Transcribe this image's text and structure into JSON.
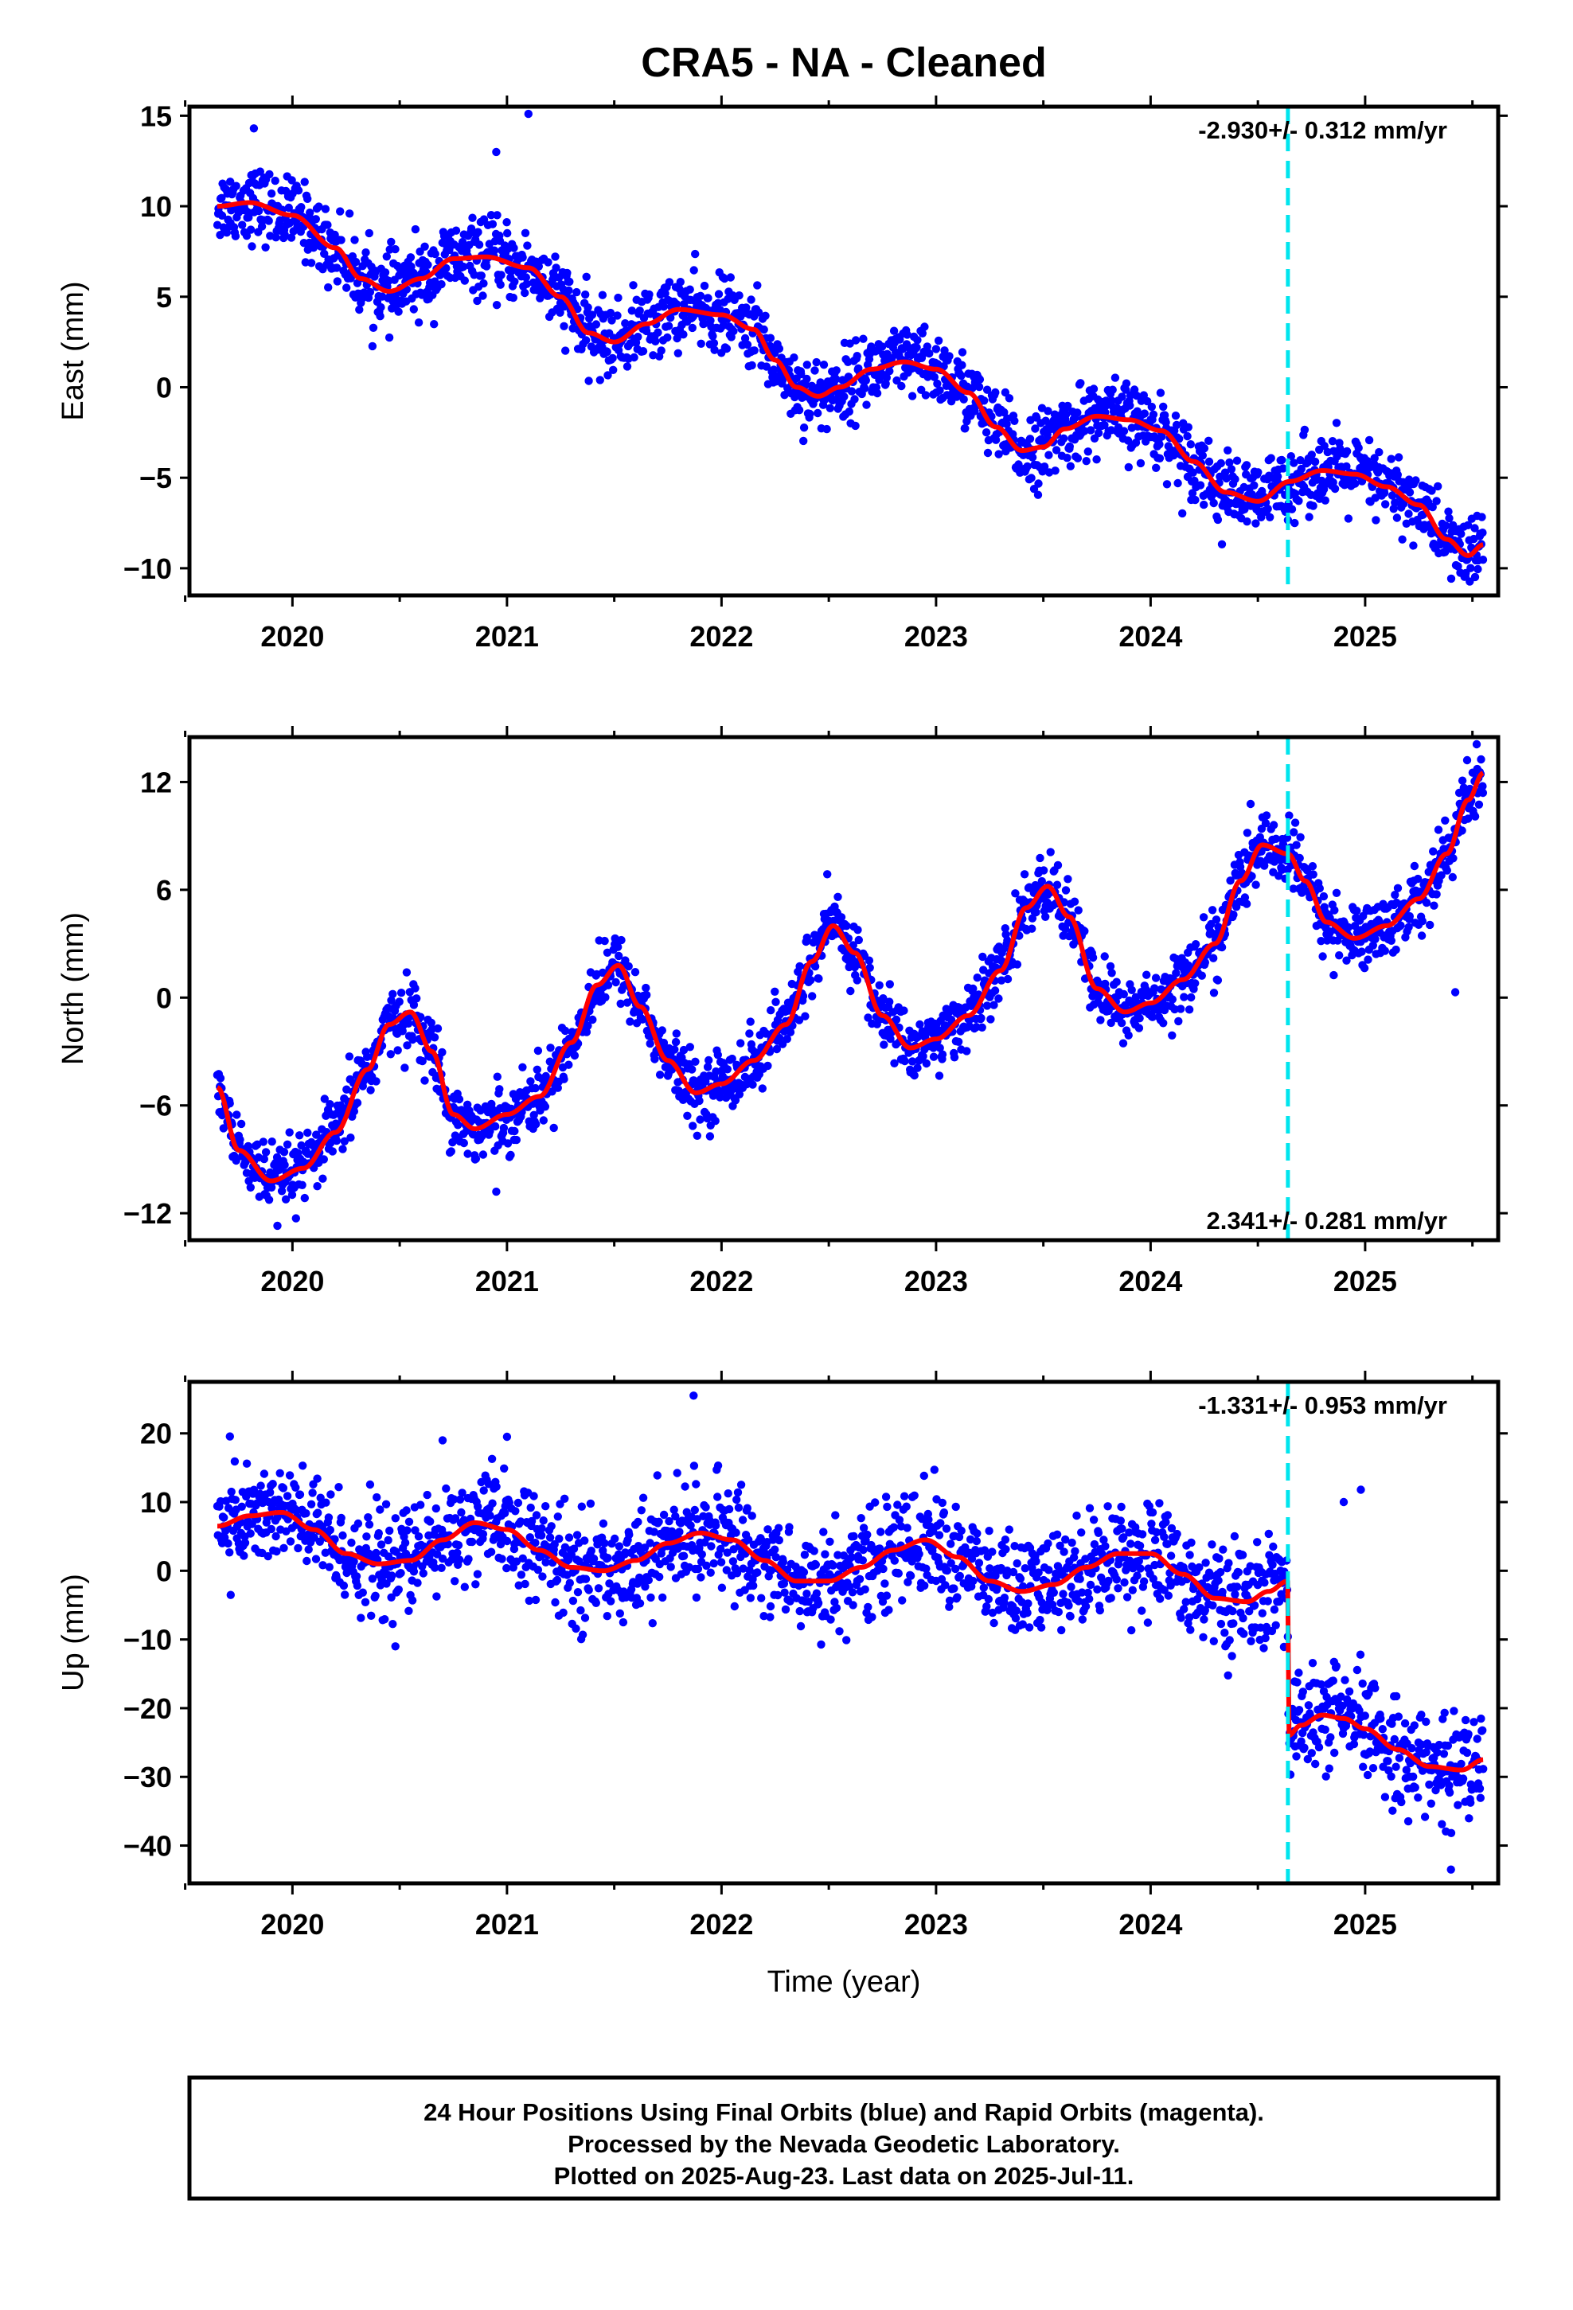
{
  "chart_data": {
    "type": "scatter",
    "title": "CRA5  - NA - Cleaned",
    "xlabel": "Time (year)",
    "xlim": [
      2019.52,
      2025.62
    ],
    "x_ticks": [
      2020,
      2021,
      2022,
      2023,
      2024,
      2025
    ],
    "x_tick_labels": [
      "2020",
      "2021",
      "2022",
      "2023",
      "2024",
      "2025"
    ],
    "equipment_change_year": 2024.64,
    "colors": {
      "points": "#0000ff",
      "fit": "#ff0000",
      "event_line": "#00e5ee"
    },
    "grid": false,
    "panels": [
      {
        "id": "east",
        "ylabel": "East (mm)",
        "ylim": [
          -11.5,
          15.5
        ],
        "yticks": [
          15,
          10,
          5,
          0,
          -5,
          -10
        ],
        "ytick_labels": [
          "15",
          "10",
          "5",
          "0",
          "−5",
          "−10"
        ],
        "rate_text": "-2.930+/- 0.312 mm/yr",
        "rate_position": "top-right",
        "fit_knots": {
          "x": [
            2019.65,
            2019.8,
            2020.0,
            2020.2,
            2020.32,
            2020.45,
            2020.6,
            2020.75,
            2020.9,
            2021.1,
            2021.25,
            2021.38,
            2021.5,
            2021.65,
            2021.8,
            2022.0,
            2022.15,
            2022.25,
            2022.35,
            2022.45,
            2022.55,
            2022.7,
            2022.85,
            2023.0,
            2023.15,
            2023.28,
            2023.4,
            2023.5,
            2023.6,
            2023.75,
            2023.9,
            2024.05,
            2024.2,
            2024.35,
            2024.5,
            2024.65,
            2024.8,
            2024.95,
            2025.1,
            2025.25,
            2025.38,
            2025.48,
            2025.55
          ],
          "y": [
            10.0,
            10.2,
            9.5,
            7.7,
            6.0,
            5.3,
            6.0,
            7.1,
            7.2,
            6.6,
            5.0,
            3.0,
            2.5,
            3.5,
            4.3,
            4.0,
            3.2,
            1.5,
            0.0,
            -0.5,
            0.0,
            1.0,
            1.4,
            1.0,
            -0.3,
            -2.2,
            -3.5,
            -3.3,
            -2.3,
            -1.6,
            -1.8,
            -2.4,
            -4.1,
            -5.8,
            -6.3,
            -5.2,
            -4.6,
            -4.8,
            -5.5,
            -6.5,
            -8.4,
            -9.3,
            -8.7
          ]
        },
        "observations": {
          "count": 1900,
          "noise_sd": 1.0,
          "outliers": [
            [
              2021.1,
              15.1
            ],
            [
              2020.95,
              13.0
            ],
            [
              2019.82,
              14.3
            ]
          ]
        }
      },
      {
        "id": "north",
        "ylabel": "North (mm)",
        "ylim": [
          -13.5,
          14.5
        ],
        "yticks": [
          12,
          6,
          0,
          -6,
          -12
        ],
        "ytick_labels": [
          "12",
          "6",
          "0",
          "−6",
          "−12"
        ],
        "rate_text": "2.341+/- 0.281 mm/yr",
        "rate_position": "bottom-right",
        "fit_knots": {
          "x": [
            2019.65,
            2019.75,
            2019.9,
            2020.05,
            2020.2,
            2020.35,
            2020.45,
            2020.55,
            2020.65,
            2020.75,
            2020.85,
            2021.0,
            2021.15,
            2021.3,
            2021.42,
            2021.52,
            2021.62,
            2021.75,
            2021.88,
            2022.0,
            2022.15,
            2022.3,
            2022.42,
            2022.52,
            2022.62,
            2022.75,
            2022.88,
            2023.0,
            2023.15,
            2023.3,
            2023.42,
            2023.52,
            2023.62,
            2023.75,
            2023.88,
            2024.0,
            2024.15,
            2024.3,
            2024.42,
            2024.52,
            2024.64,
            2024.72,
            2024.82,
            2024.95,
            2025.1,
            2025.25,
            2025.38,
            2025.48,
            2025.55
          ],
          "y": [
            -5.0,
            -8.5,
            -10.2,
            -9.5,
            -7.5,
            -4.0,
            -1.5,
            -0.8,
            -3.0,
            -6.5,
            -7.3,
            -6.5,
            -5.5,
            -2.5,
            0.7,
            1.8,
            -0.5,
            -3.5,
            -5.3,
            -4.8,
            -3.5,
            -1.5,
            2.0,
            4.0,
            2.5,
            -1.0,
            -2.8,
            -2.3,
            -1.0,
            1.5,
            5.0,
            6.2,
            4.5,
            0.5,
            -0.8,
            -0.3,
            1.0,
            3.0,
            6.5,
            8.5,
            8.0,
            6.5,
            4.2,
            3.3,
            4.0,
            5.5,
            8.0,
            11.0,
            12.5
          ]
        },
        "observations": {
          "count": 1900,
          "noise_sd": 0.9,
          "outliers": [
            [
              2025.42,
              0.3
            ],
            [
              2020.95,
              -10.8
            ],
            [
              2019.93,
              -12.7
            ],
            [
              2025.52,
              14.1
            ]
          ]
        }
      },
      {
        "id": "up",
        "ylabel": "Up (mm)",
        "ylim": [
          -45.5,
          27.5
        ],
        "yticks": [
          20,
          10,
          0,
          -10,
          -20,
          -30,
          -40
        ],
        "ytick_labels": [
          "20",
          "10",
          "0",
          "−10",
          "−20",
          "−30",
          "−40"
        ],
        "rate_text": "-1.331+/- 0.953 mm/yr",
        "rate_position": "top-right",
        "fit_knots": {
          "x": [
            2019.65,
            2019.8,
            2019.95,
            2020.1,
            2020.25,
            2020.4,
            2020.55,
            2020.7,
            2020.85,
            2021.0,
            2021.15,
            2021.3,
            2021.45,
            2021.6,
            2021.75,
            2021.9,
            2022.05,
            2022.2,
            2022.35,
            2022.5,
            2022.65,
            2022.8,
            2022.95,
            2023.1,
            2023.25,
            2023.4,
            2023.55,
            2023.7,
            2023.85,
            2024.0,
            2024.15,
            2024.3,
            2024.45,
            2024.55,
            2024.639,
            2024.641,
            2024.7,
            2024.8,
            2024.9,
            2025.0,
            2025.15,
            2025.3,
            2025.45,
            2025.55
          ],
          "y": [
            6.5,
            8.0,
            8.5,
            6.0,
            2.5,
            1.0,
            1.5,
            4.5,
            7.0,
            6.0,
            3.0,
            0.5,
            0.0,
            1.5,
            4.0,
            5.5,
            4.5,
            1.5,
            -1.5,
            -1.5,
            0.5,
            3.0,
            4.5,
            2.0,
            -1.5,
            -3.0,
            -2.0,
            0.5,
            2.5,
            2.5,
            -0.5,
            -4.0,
            -4.5,
            -3.0,
            -1.5,
            -24.0,
            -22.5,
            -21.0,
            -21.5,
            -23.0,
            -26.0,
            -28.5,
            -29.0,
            -27.5
          ]
        },
        "observations": {
          "count": 1900,
          "noise_sd": 3.8,
          "outliers": [
            [
              2021.87,
              25.5
            ],
            [
              2021.0,
              19.5
            ],
            [
              2020.7,
              19.0
            ],
            [
              2024.9,
              10.0
            ],
            [
              2024.98,
              11.8
            ],
            [
              2020.48,
              -11.0
            ],
            [
              2025.4,
              -43.5
            ]
          ]
        }
      }
    ]
  },
  "footer": {
    "line1": "24 Hour Positions Using Final Orbits (blue) and Rapid Orbits (magenta).",
    "line2": "Processed by the Nevada Geodetic Laboratory.",
    "line3": "Plotted on 2025-Aug-23. Last data on 2025-Jul-11."
  }
}
